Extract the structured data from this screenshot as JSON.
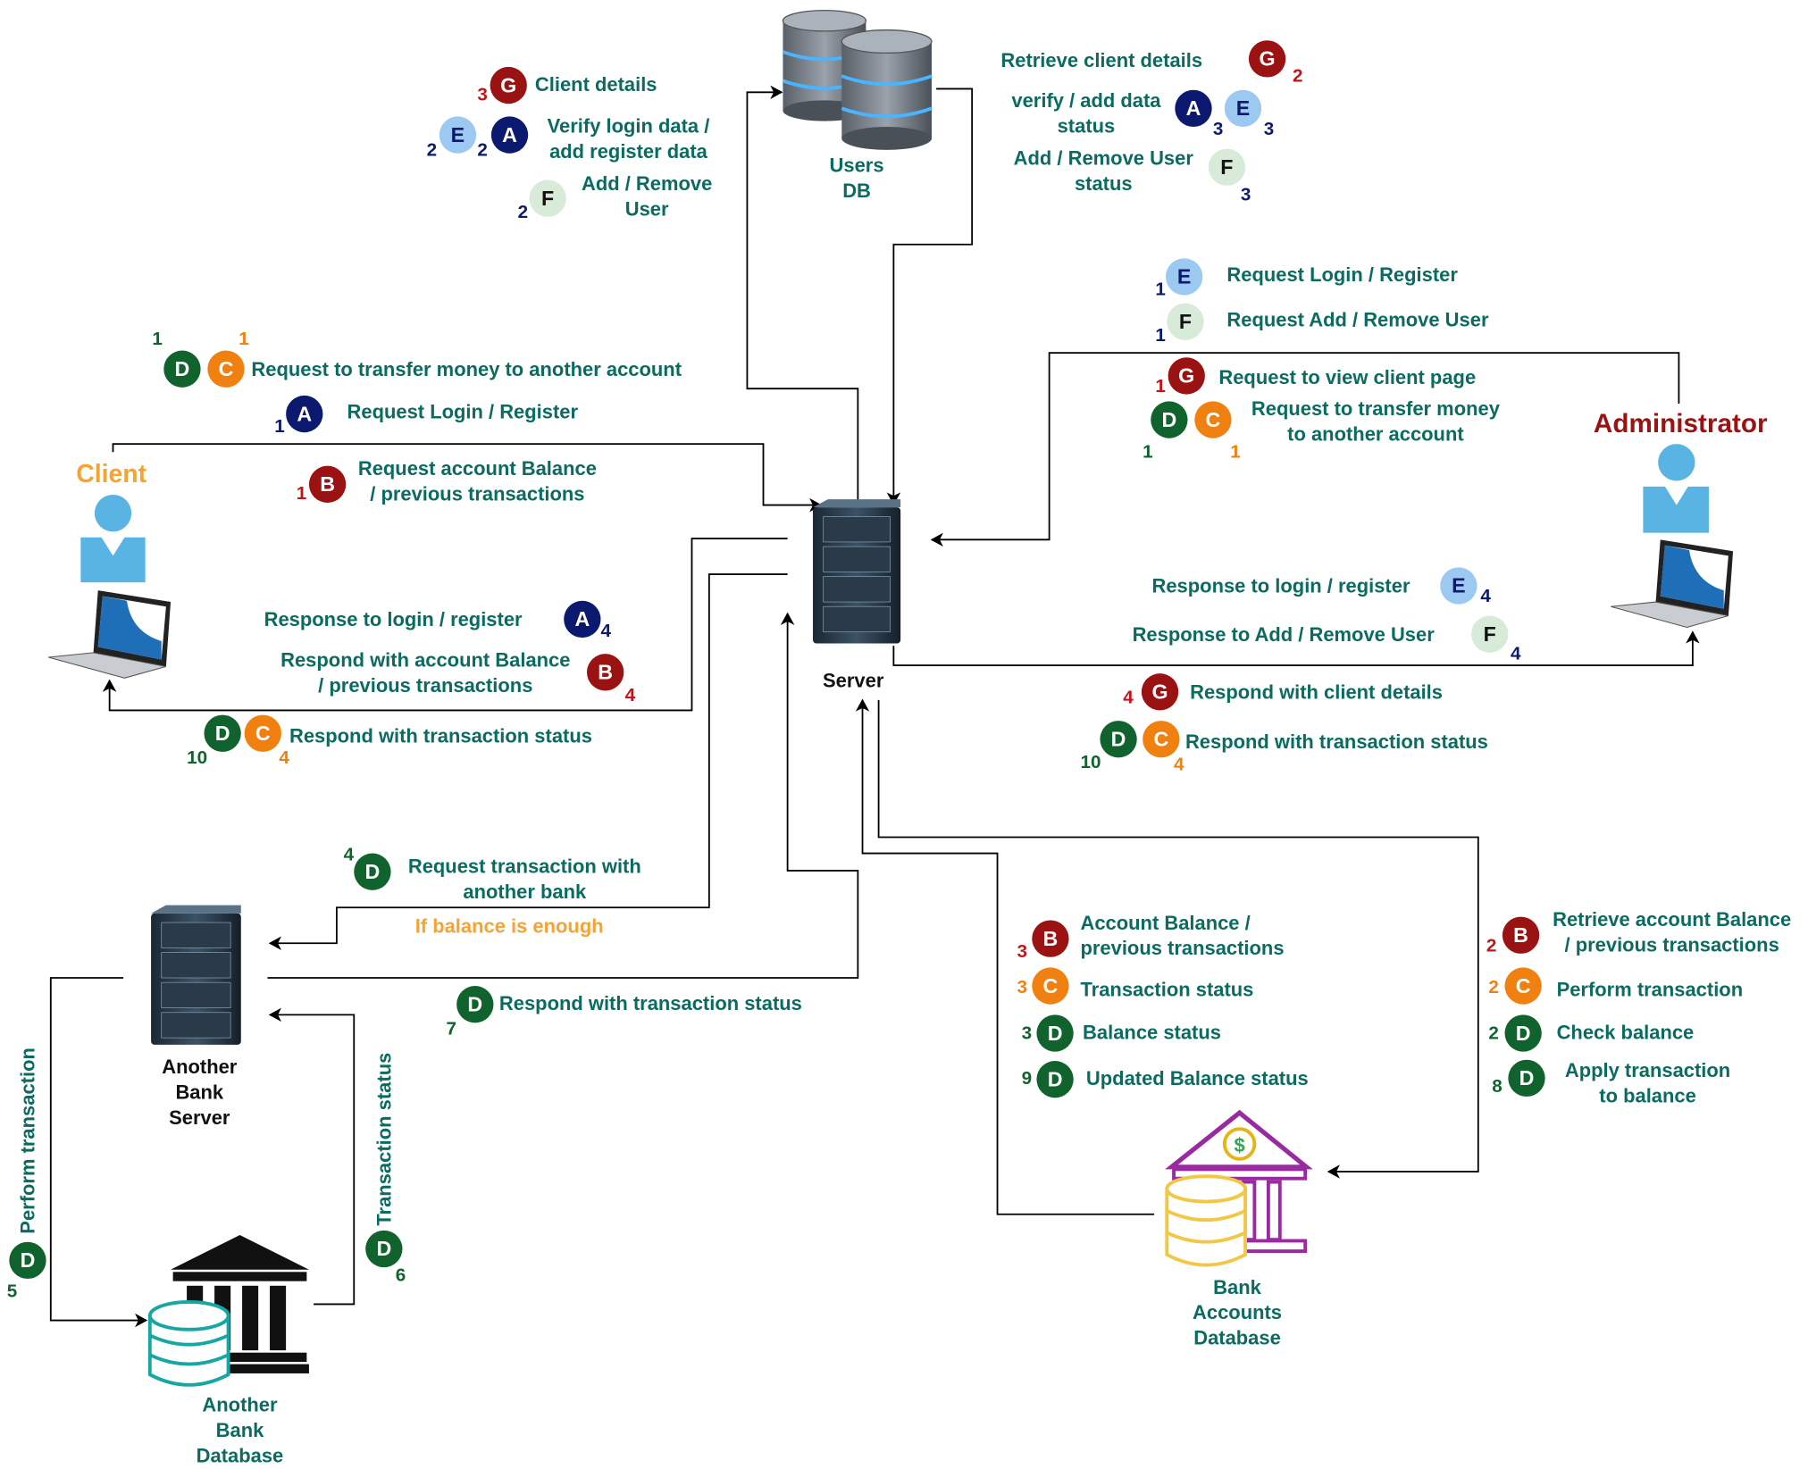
{
  "nodes": {
    "users_db": "Users\nDB",
    "server": "Server",
    "client": "Client",
    "administrator": "Administrator",
    "another_bank_server": "Another\nBank\nServer",
    "another_bank_database": "Another\nBank\nDatabase",
    "bank_accounts_database": "Bank\nAccounts\nDatabase"
  },
  "messages": {
    "client_details": "Client details",
    "verify_login": "Verify login data /\nadd register data",
    "add_remove_user": "Add / Remove\nUser",
    "retrieve_client_details": "Retrieve client details",
    "verify_add_status": "verify / add data\nstatus",
    "add_remove_status": "Add / Remove User\nstatus",
    "admin_request_login": "Request Login / Register",
    "admin_request_add_remove": "Request Add / Remove User",
    "admin_view_client": "Request to view client page",
    "admin_transfer": "Request to transfer money\nto another account",
    "client_transfer": "Request to transfer money to another account",
    "client_request_login": "Request Login / Register",
    "client_request_balance": "Request account Balance\n/ previous transactions",
    "client_response_login": "Response to login / register",
    "client_respond_balance": "Respond with account Balance\n/ previous transactions",
    "client_respond_tx": "Respond with transaction status",
    "admin_response_login": "Response to login / register",
    "admin_response_add_remove": "Response to Add / Remove User",
    "admin_respond_details": "Respond with client details",
    "admin_respond_tx": "Respond with transaction status",
    "request_another_bank": "Request transaction with\nanother bank",
    "if_balance_enough": "If balance is enough",
    "another_respond_tx": "Respond with transaction status",
    "perform_transaction_v": "Perform transaction",
    "transaction_status_v": "Transaction status",
    "db_account_balance": "Account Balance /\nprevious transactions",
    "db_transaction_status": "Transaction status",
    "db_balance_status": "Balance status",
    "db_updated_balance": "Updated Balance status",
    "retrieve_account_balance": "Retrieve account Balance\n/ previous transactions",
    "perform_transaction": "Perform transaction",
    "check_balance": "Check balance",
    "apply_transaction": "Apply transaction\nto balance"
  },
  "badges": {
    "A": "A",
    "B": "B",
    "C": "C",
    "D": "D",
    "E": "E",
    "F": "F",
    "G": "G"
  },
  "steps": {
    "s1": "1",
    "s2": "2",
    "s3": "3",
    "s4": "4",
    "s5": "5",
    "s6": "6",
    "s7": "7",
    "s8": "8",
    "s9": "9",
    "s10": "10"
  },
  "colors": {
    "text_teal": "#0b6b60",
    "badge_A": "#0b1a6e",
    "badge_B": "#9b1212",
    "badge_C": "#f08010",
    "badge_D": "#11632e",
    "badge_E": "#9cc9f2",
    "badge_F": "#d8ebd8",
    "client_label": "#f5a433",
    "admin_label": "#9b1212"
  },
  "icons": {
    "users_db": "database-icon",
    "server": "server-rack-icon",
    "client": "user-laptop-icon",
    "administrator": "user-laptop-icon",
    "another_bank_server": "server-rack-icon",
    "another_bank_database": "bank-database-icon",
    "bank_accounts_database": "bank-database-icon"
  }
}
